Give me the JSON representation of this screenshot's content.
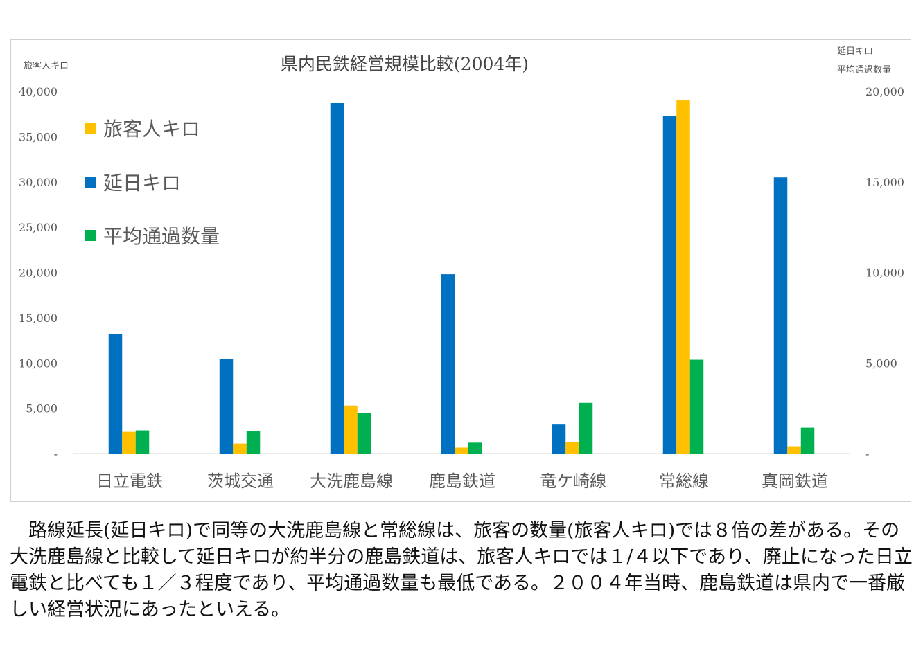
{
  "chart_data": {
    "type": "bar",
    "title": "県内民鉄経営規模比較(2004年)",
    "left_axis_label": "旅客人キロ",
    "right_axis_labels": [
      "延日キロ",
      "平均通過数量"
    ],
    "categories": [
      "日立電鉄",
      "茨城交通",
      "大洗鹿島線",
      "鹿島鉄道",
      "竜ケ崎線",
      "常総線",
      "真岡鉄道"
    ],
    "series": [
      {
        "name": "延日キロ",
        "axis": "right",
        "color": "#0070c0",
        "values": [
          6600,
          5200,
          19350,
          9900,
          1600,
          18650,
          15250
        ]
      },
      {
        "name": "旅客人キロ",
        "axis": "left",
        "color": "#ffc000",
        "values": [
          2400,
          1100,
          5300,
          650,
          1300,
          39000,
          800
        ]
      },
      {
        "name": "平均通過数量",
        "axis": "right",
        "color": "#00b050",
        "values": [
          1280,
          1230,
          2220,
          600,
          2800,
          5180,
          1430
        ]
      }
    ],
    "legend_order": [
      "旅客人キロ",
      "延日キロ",
      "平均通過数量"
    ],
    "legend_position": "top-left",
    "ylim_left": [
      0,
      40000
    ],
    "ylim_right": [
      0,
      20000
    ],
    "yticks_left": [
      "-",
      "5,000",
      "10,000",
      "15,000",
      "20,000",
      "25,000",
      "30,000",
      "35,000",
      "40,000"
    ],
    "yticks_right": [
      "-",
      "5,000",
      "10,000",
      "15,000",
      "20,000"
    ],
    "grid": false
  },
  "caption": "　路線延長(延日キロ)で同等の大洗鹿島線と常総線は、旅客の数量(旅客人キロ)では８倍の差がある。その大洗鹿島線と比較して延日キロが約半分の鹿島鉄道は、旅客人キロでは１/４以下であり、廃止になった日立電鉄と比べても１／３程度であり、平均通過数量も最低である。２００４年当時、鹿島鉄道は県内で一番厳しい経営状況にあったといえる。"
}
